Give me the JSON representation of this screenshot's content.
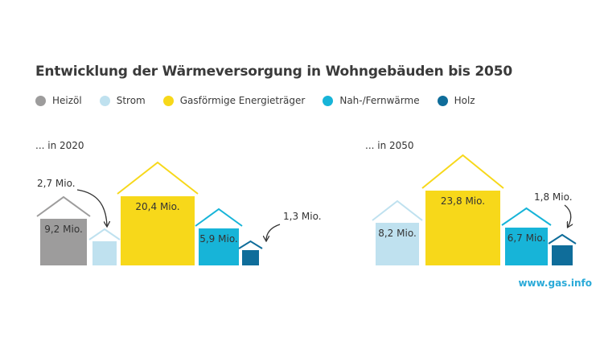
{
  "title": "Entwicklung der Wärmeversorgung in Wohngebäuden bis 2050",
  "legend": [
    {
      "label": "Heizöl",
      "color": "#9d9c9c"
    },
    {
      "label": "Strom",
      "color": "#bfe1ef"
    },
    {
      "label": "Gasförmige Energieträger",
      "color": "#f7d81a"
    },
    {
      "label": "Nah-/Fernwärme",
      "color": "#17b4d8"
    },
    {
      "label": "Holz",
      "color": "#0f6d9a"
    }
  ],
  "period_labels": [
    "... in 2020",
    "... in 2050"
  ],
  "footer": "www.gas.info",
  "chart_data": [
    {
      "type": "bar",
      "title": "... in 2020",
      "unit": "Mio.",
      "categories": [
        "Heizöl",
        "Strom",
        "Gasförmige Energieträger",
        "Nah-/Fernwärme",
        "Holz"
      ],
      "values": [
        9.2,
        2.7,
        20.4,
        5.9,
        1.3
      ],
      "data_labels": [
        "9,2 Mio.",
        "2,7 Mio.",
        "20,4 Mio.",
        "5,9 Mio.",
        "1,3 Mio."
      ]
    },
    {
      "type": "bar",
      "title": "... in 2050",
      "unit": "Mio.",
      "categories": [
        "Strom",
        "Gasförmige Energieträger",
        "Nah-/Fernwärme",
        "Holz"
      ],
      "values": [
        8.2,
        23.8,
        6.7,
        1.8
      ],
      "data_labels": [
        "8,2 Mio.",
        "23,8 Mio.",
        "6,7 Mio.",
        "1,8 Mio."
      ]
    }
  ]
}
